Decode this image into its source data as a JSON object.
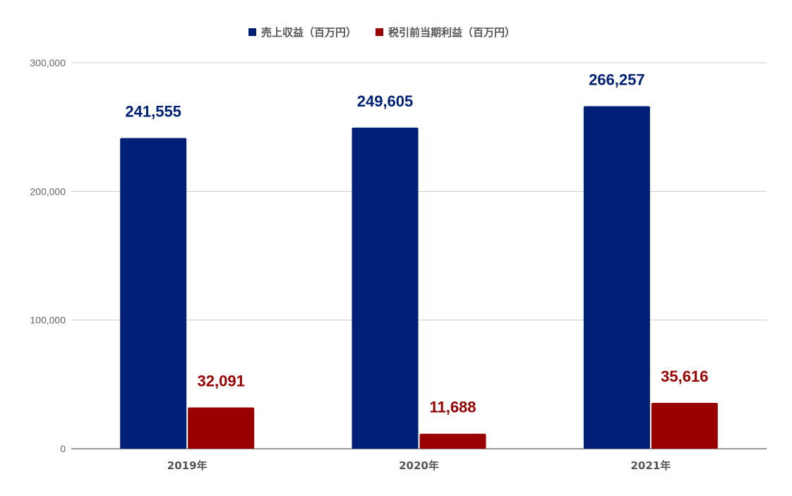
{
  "chart_data": {
    "type": "bar",
    "categories": [
      "2019年",
      "2020年",
      "2021年"
    ],
    "series": [
      {
        "name": "売上収益（百万円）",
        "color": "#002078",
        "values": [
          241555,
          249605,
          266257
        ],
        "labels": [
          "241,555",
          "249,605",
          "266,257"
        ]
      },
      {
        "name": "税引前当期利益（百万円）",
        "color": "#990000",
        "values": [
          32091,
          11688,
          35616
        ],
        "labels": [
          "32,091",
          "11,688",
          "35,616"
        ]
      }
    ],
    "yticks": [
      0,
      100000,
      200000,
      300000
    ],
    "ytick_labels": [
      "0",
      "100,000",
      "200,000",
      "300,000"
    ],
    "ylim": [
      0,
      300000
    ],
    "grid": true,
    "legend_position": "top-center",
    "title": "",
    "xlabel": "",
    "ylabel": ""
  }
}
